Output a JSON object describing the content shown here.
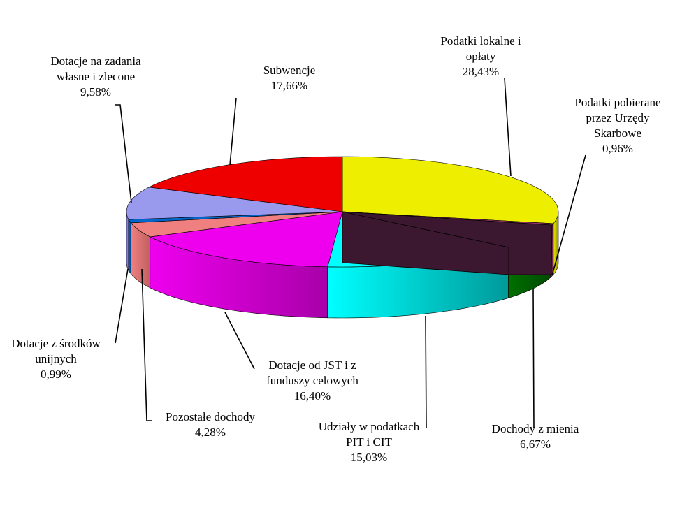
{
  "chart_data": {
    "type": "pie",
    "style": "3d",
    "slices": [
      {
        "label_lines": [
          "Podatki lokalne i",
          "opłaty",
          "28,43%"
        ],
        "value": 28.43,
        "top_color": "#EEEE00",
        "side_color": "#8F8F00"
      },
      {
        "label_lines": [
          "Podatki  pobierane",
          "przez Urzędy",
          "Skarbowe",
          "0,96%"
        ],
        "value": 0.96,
        "top_color": "#993366",
        "side_color": "#5C1F3D"
      },
      {
        "label_lines": [
          "Dochody  z mienia",
          "6,67%"
        ],
        "value": 6.67,
        "top_color": "#007000",
        "side_color": "#004A00"
      },
      {
        "label_lines": [
          "Udziały  w podatkach",
          "PIT  i CIT",
          "15,03%"
        ],
        "value": 15.03,
        "top_color": "#00FFFF",
        "side_color": "#009A9A"
      },
      {
        "label_lines": [
          "Dotacje od JST i z",
          "funduszy  celowych",
          "16,40%"
        ],
        "value": 16.4,
        "top_color": "#EE00EE",
        "side_color": "#A800A8"
      },
      {
        "label_lines": [
          "Pozostałe  dochody",
          "4,28%"
        ],
        "value": 4.28,
        "top_color": "#F08080",
        "side_color": "#C06060"
      },
      {
        "label_lines": [
          "Dotacje z środków",
          "unijnych",
          "0,99%"
        ],
        "value": 0.99,
        "top_color": "#0066CC",
        "side_color": "#00458A"
      },
      {
        "label_lines": [
          "Dotacje na zadania",
          "własne i zlecone",
          "9,58%"
        ],
        "value": 9.58,
        "top_color": "#9999EE",
        "side_color": "#6666B0"
      },
      {
        "label_lines": [
          "Subwencje",
          "17,66%"
        ],
        "value": 17.66,
        "top_color": "#EE0000",
        "side_color": "#A00000"
      }
    ],
    "overlay_color": "#3C1830"
  }
}
